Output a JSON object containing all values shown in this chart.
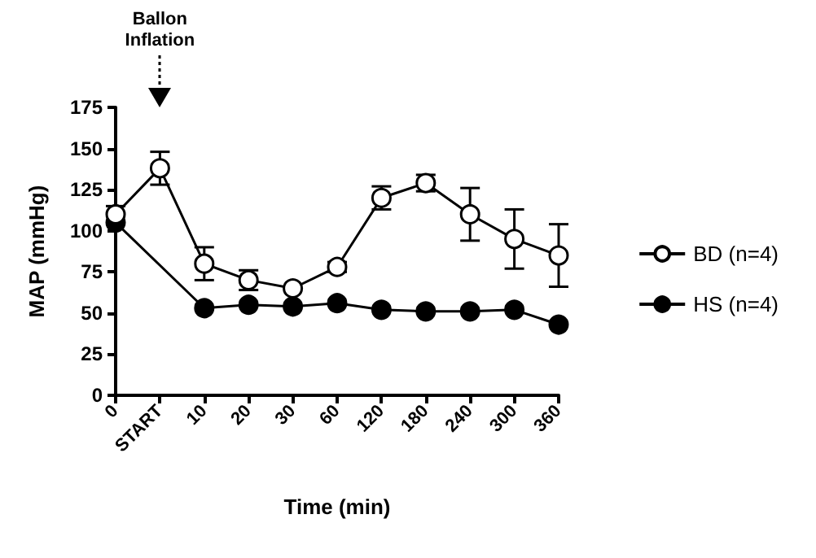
{
  "chart_data": {
    "type": "line",
    "xlabel": "Time (min)",
    "ylabel": "MAP (mmHg)",
    "categories": [
      "0",
      "START",
      "10",
      "20",
      "30",
      "60",
      "120",
      "180",
      "240",
      "300",
      "360"
    ],
    "series": [
      {
        "name": "BD (n=4)",
        "color": "#000000",
        "values": [
          110,
          138,
          80,
          70,
          65,
          78,
          120,
          129,
          110,
          95,
          85
        ],
        "errors": [
          5,
          10,
          10,
          6,
          null,
          3,
          7,
          5,
          16,
          18,
          19
        ]
      },
      {
        "name": "HS (n=4)",
        "color": "#000000",
        "values": [
          105,
          null,
          53,
          55,
          54,
          56,
          52,
          51,
          51,
          52,
          43
        ]
      }
    ],
    "ylim": [
      0,
      175
    ],
    "yticks": [
      0,
      25,
      50,
      75,
      100,
      125,
      150,
      175
    ],
    "annotations": [
      "Ballon Inflation"
    ],
    "grid": false,
    "legend": "right",
    "marker": "circle",
    "line_style": "solid"
  }
}
